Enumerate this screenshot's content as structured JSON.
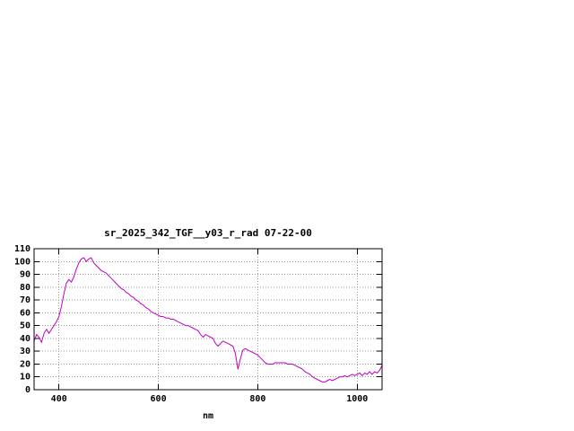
{
  "chart_data": {
    "type": "line",
    "title": "sr_2025_342_TGF__y03_r_rad 07-22-00",
    "xlabel": "nm",
    "ylabel": "",
    "xlim": [
      350,
      1050
    ],
    "ylim": [
      0,
      110
    ],
    "grid": true,
    "legend": "none",
    "xticks": [
      400,
      600,
      800,
      1000
    ],
    "yticks": [
      0,
      10,
      20,
      30,
      40,
      50,
      60,
      70,
      80,
      90,
      100,
      110
    ],
    "line_color": "#c000c0",
    "series": [
      {
        "name": "sr_2025_342_TGF__y03_r_rad",
        "color": "#c000c0",
        "x": [
          350,
          355,
          360,
          365,
          370,
          375,
          380,
          385,
          390,
          395,
          400,
          405,
          410,
          415,
          420,
          425,
          430,
          435,
          440,
          445,
          450,
          455,
          460,
          465,
          470,
          475,
          480,
          485,
          490,
          495,
          500,
          505,
          510,
          515,
          520,
          525,
          530,
          535,
          540,
          545,
          550,
          555,
          560,
          565,
          570,
          575,
          580,
          585,
          590,
          595,
          600,
          605,
          610,
          615,
          620,
          625,
          630,
          635,
          640,
          645,
          650,
          655,
          660,
          665,
          670,
          675,
          680,
          685,
          690,
          695,
          700,
          705,
          710,
          715,
          720,
          725,
          730,
          735,
          740,
          745,
          750,
          755,
          760,
          765,
          770,
          775,
          780,
          785,
          790,
          795,
          800,
          805,
          810,
          815,
          820,
          825,
          830,
          835,
          840,
          845,
          850,
          855,
          860,
          865,
          870,
          875,
          880,
          885,
          890,
          895,
          900,
          905,
          910,
          915,
          920,
          925,
          930,
          935,
          940,
          945,
          950,
          955,
          960,
          965,
          970,
          975,
          980,
          985,
          990,
          995,
          1000,
          1005,
          1010,
          1015,
          1020,
          1025,
          1030,
          1035,
          1040,
          1045,
          1050
        ],
        "y": [
          38,
          43,
          41,
          37,
          44,
          47,
          44,
          47,
          50,
          53,
          57,
          65,
          75,
          83,
          86,
          84,
          88,
          94,
          99,
          102,
          103,
          100,
          102,
          103,
          99,
          97,
          95,
          93,
          92,
          91,
          89,
          87,
          85,
          83,
          81,
          79,
          78,
          76,
          75,
          73,
          72,
          70,
          69,
          67,
          66,
          64,
          63,
          61,
          60,
          59,
          58,
          57,
          57,
          56,
          56,
          55,
          55,
          54,
          53,
          52,
          51,
          50,
          50,
          49,
          48,
          47,
          46,
          43,
          41,
          43,
          42,
          41,
          40,
          36,
          34,
          36,
          38,
          37,
          36,
          35,
          34,
          28,
          16,
          24,
          31,
          32,
          31,
          30,
          29,
          28,
          27,
          25,
          23,
          21,
          20,
          20,
          20,
          21,
          21,
          21,
          21,
          21,
          20,
          20,
          20,
          19,
          18,
          17,
          16,
          14,
          13,
          12,
          10,
          9,
          8,
          7,
          6,
          6,
          7,
          8,
          7,
          8,
          9,
          10,
          10,
          11,
          10,
          11,
          12,
          11,
          12,
          13,
          11,
          13,
          12,
          14,
          12,
          14,
          13,
          15,
          19
        ]
      }
    ]
  }
}
